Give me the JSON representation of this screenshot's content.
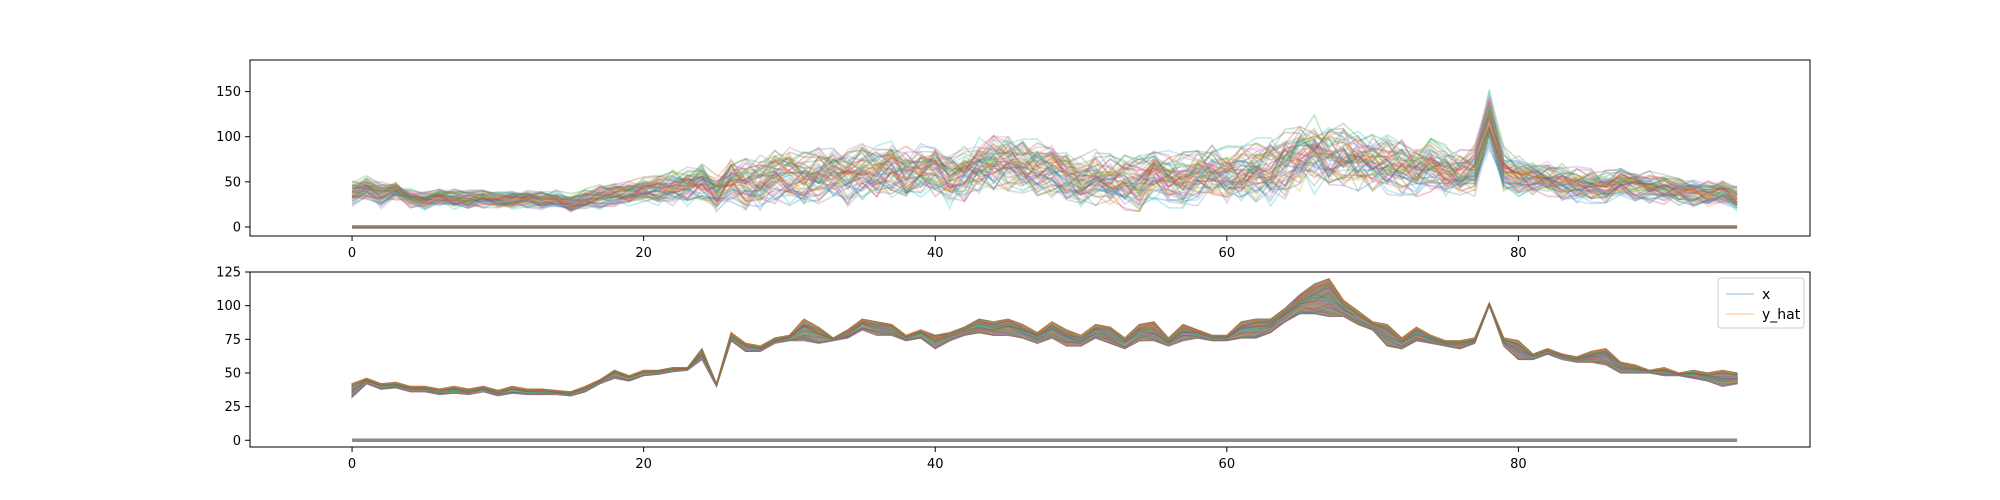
{
  "chart_data": [
    {
      "type": "line",
      "xlim": [
        -7,
        100
      ],
      "ylim": [
        -10,
        185
      ],
      "xticks": [
        0,
        20,
        40,
        60,
        80
      ],
      "yticks": [
        0,
        50,
        100,
        150
      ],
      "legend": false,
      "series_count": 60,
      "flat_series_value": 0,
      "palette": [
        "#1f77b4",
        "#ff7f0e",
        "#2ca02c",
        "#d62728",
        "#9467bd",
        "#8c564b",
        "#e377c2",
        "#7f7f7f",
        "#bcbd22",
        "#17becf"
      ],
      "x": [
        0,
        1,
        2,
        3,
        4,
        5,
        6,
        7,
        8,
        9,
        10,
        11,
        12,
        13,
        14,
        15,
        16,
        17,
        18,
        19,
        20,
        21,
        22,
        23,
        24,
        25,
        26,
        27,
        28,
        29,
        30,
        31,
        32,
        33,
        34,
        35,
        36,
        37,
        38,
        39,
        40,
        41,
        42,
        43,
        44,
        45,
        46,
        47,
        48,
        49,
        50,
        51,
        52,
        53,
        54,
        55,
        56,
        57,
        58,
        59,
        60,
        61,
        62,
        63,
        64,
        65,
        66,
        67,
        68,
        69,
        70,
        71,
        72,
        73,
        74,
        75,
        76,
        77,
        78,
        79,
        80,
        81,
        82,
        83,
        84,
        85,
        86,
        87,
        88,
        89,
        90,
        91,
        92,
        93,
        94,
        95
      ],
      "center": [
        38,
        42,
        36,
        40,
        32,
        30,
        33,
        31,
        30,
        32,
        30,
        31,
        32,
        30,
        31,
        26,
        30,
        33,
        36,
        38,
        40,
        42,
        44,
        46,
        50,
        38,
        52,
        48,
        50,
        55,
        58,
        52,
        60,
        62,
        56,
        64,
        60,
        66,
        58,
        62,
        64,
        52,
        60,
        68,
        72,
        70,
        66,
        64,
        62,
        56,
        48,
        55,
        50,
        52,
        48,
        60,
        54,
        52,
        58,
        62,
        56,
        58,
        62,
        64,
        70,
        78,
        82,
        76,
        80,
        74,
        72,
        70,
        66,
        64,
        70,
        62,
        60,
        64,
        120,
        62,
        56,
        55,
        52,
        50,
        48,
        46,
        44,
        50,
        46,
        44,
        42,
        40,
        38,
        36,
        40,
        32
      ],
      "spread": [
        12,
        12,
        12,
        10,
        9,
        9,
        9,
        9,
        9,
        9,
        9,
        9,
        9,
        9,
        9,
        9,
        10,
        11,
        12,
        13,
        14,
        15,
        16,
        18,
        20,
        18,
        22,
        24,
        25,
        26,
        27,
        27,
        27,
        27,
        27,
        27,
        27,
        27,
        27,
        27,
        27,
        27,
        27,
        27,
        28,
        28,
        28,
        27,
        27,
        27,
        27,
        27,
        27,
        27,
        27,
        27,
        27,
        27,
        28,
        28,
        28,
        28,
        30,
        32,
        34,
        36,
        36,
        34,
        32,
        30,
        28,
        27,
        26,
        25,
        25,
        24,
        24,
        24,
        30,
        22,
        20,
        19,
        18,
        18,
        17,
        17,
        16,
        16,
        15,
        15,
        14,
        14,
        13,
        13,
        12,
        12
      ]
    },
    {
      "type": "line",
      "xlim": [
        -7,
        100
      ],
      "ylim": [
        -5,
        125
      ],
      "xticks": [
        0,
        20,
        40,
        60,
        80
      ],
      "yticks": [
        0,
        25,
        50,
        75,
        100,
        125
      ],
      "legend": true,
      "legend_position": "top-right",
      "series": [
        {
          "name": "x",
          "color": "#1f77b4"
        },
        {
          "name": "y_hat",
          "color": "#ff7f0e"
        }
      ],
      "band_color": "#8c7b6b",
      "flat_series_value": 0,
      "x": [
        0,
        1,
        2,
        3,
        4,
        5,
        6,
        7,
        8,
        9,
        10,
        11,
        12,
        13,
        14,
        15,
        16,
        17,
        18,
        19,
        20,
        21,
        22,
        23,
        24,
        25,
        26,
        27,
        28,
        29,
        30,
        31,
        32,
        33,
        34,
        35,
        36,
        37,
        38,
        39,
        40,
        41,
        42,
        43,
        44,
        45,
        46,
        47,
        48,
        49,
        50,
        51,
        52,
        53,
        54,
        55,
        56,
        57,
        58,
        59,
        60,
        61,
        62,
        63,
        64,
        65,
        66,
        67,
        68,
        69,
        70,
        71,
        72,
        73,
        74,
        75,
        76,
        77,
        78,
        79,
        80,
        81,
        82,
        83,
        84,
        85,
        86,
        87,
        88,
        89,
        90,
        91,
        92,
        93,
        94,
        95
      ],
      "upper": [
        42,
        46,
        42,
        43,
        40,
        40,
        38,
        40,
        38,
        40,
        37,
        40,
        38,
        38,
        37,
        36,
        40,
        45,
        52,
        48,
        52,
        52,
        54,
        54,
        68,
        42,
        80,
        72,
        70,
        76,
        78,
        90,
        84,
        76,
        82,
        90,
        88,
        86,
        78,
        82,
        78,
        80,
        84,
        90,
        88,
        90,
        86,
        80,
        88,
        82,
        78,
        86,
        84,
        76,
        86,
        88,
        76,
        86,
        82,
        78,
        78,
        88,
        90,
        90,
        98,
        108,
        116,
        120,
        104,
        96,
        88,
        86,
        76,
        84,
        78,
        74,
        74,
        76,
        102,
        76,
        74,
        64,
        68,
        64,
        62,
        66,
        68,
        58,
        56,
        52,
        54,
        50,
        52,
        50,
        52,
        50
      ],
      "lower": [
        32,
        42,
        38,
        39,
        36,
        36,
        34,
        35,
        34,
        36,
        33,
        35,
        34,
        34,
        34,
        33,
        36,
        42,
        46,
        44,
        48,
        49,
        51,
        52,
        60,
        40,
        74,
        66,
        66,
        72,
        74,
        74,
        72,
        74,
        76,
        82,
        78,
        78,
        74,
        76,
        68,
        74,
        78,
        80,
        78,
        78,
        76,
        72,
        76,
        70,
        70,
        76,
        72,
        68,
        74,
        74,
        70,
        74,
        76,
        74,
        74,
        76,
        76,
        80,
        88,
        94,
        94,
        92,
        92,
        86,
        82,
        70,
        68,
        74,
        72,
        70,
        68,
        72,
        100,
        70,
        60,
        60,
        64,
        60,
        58,
        58,
        56,
        50,
        50,
        50,
        48,
        48,
        46,
        44,
        40,
        42
      ]
    }
  ]
}
